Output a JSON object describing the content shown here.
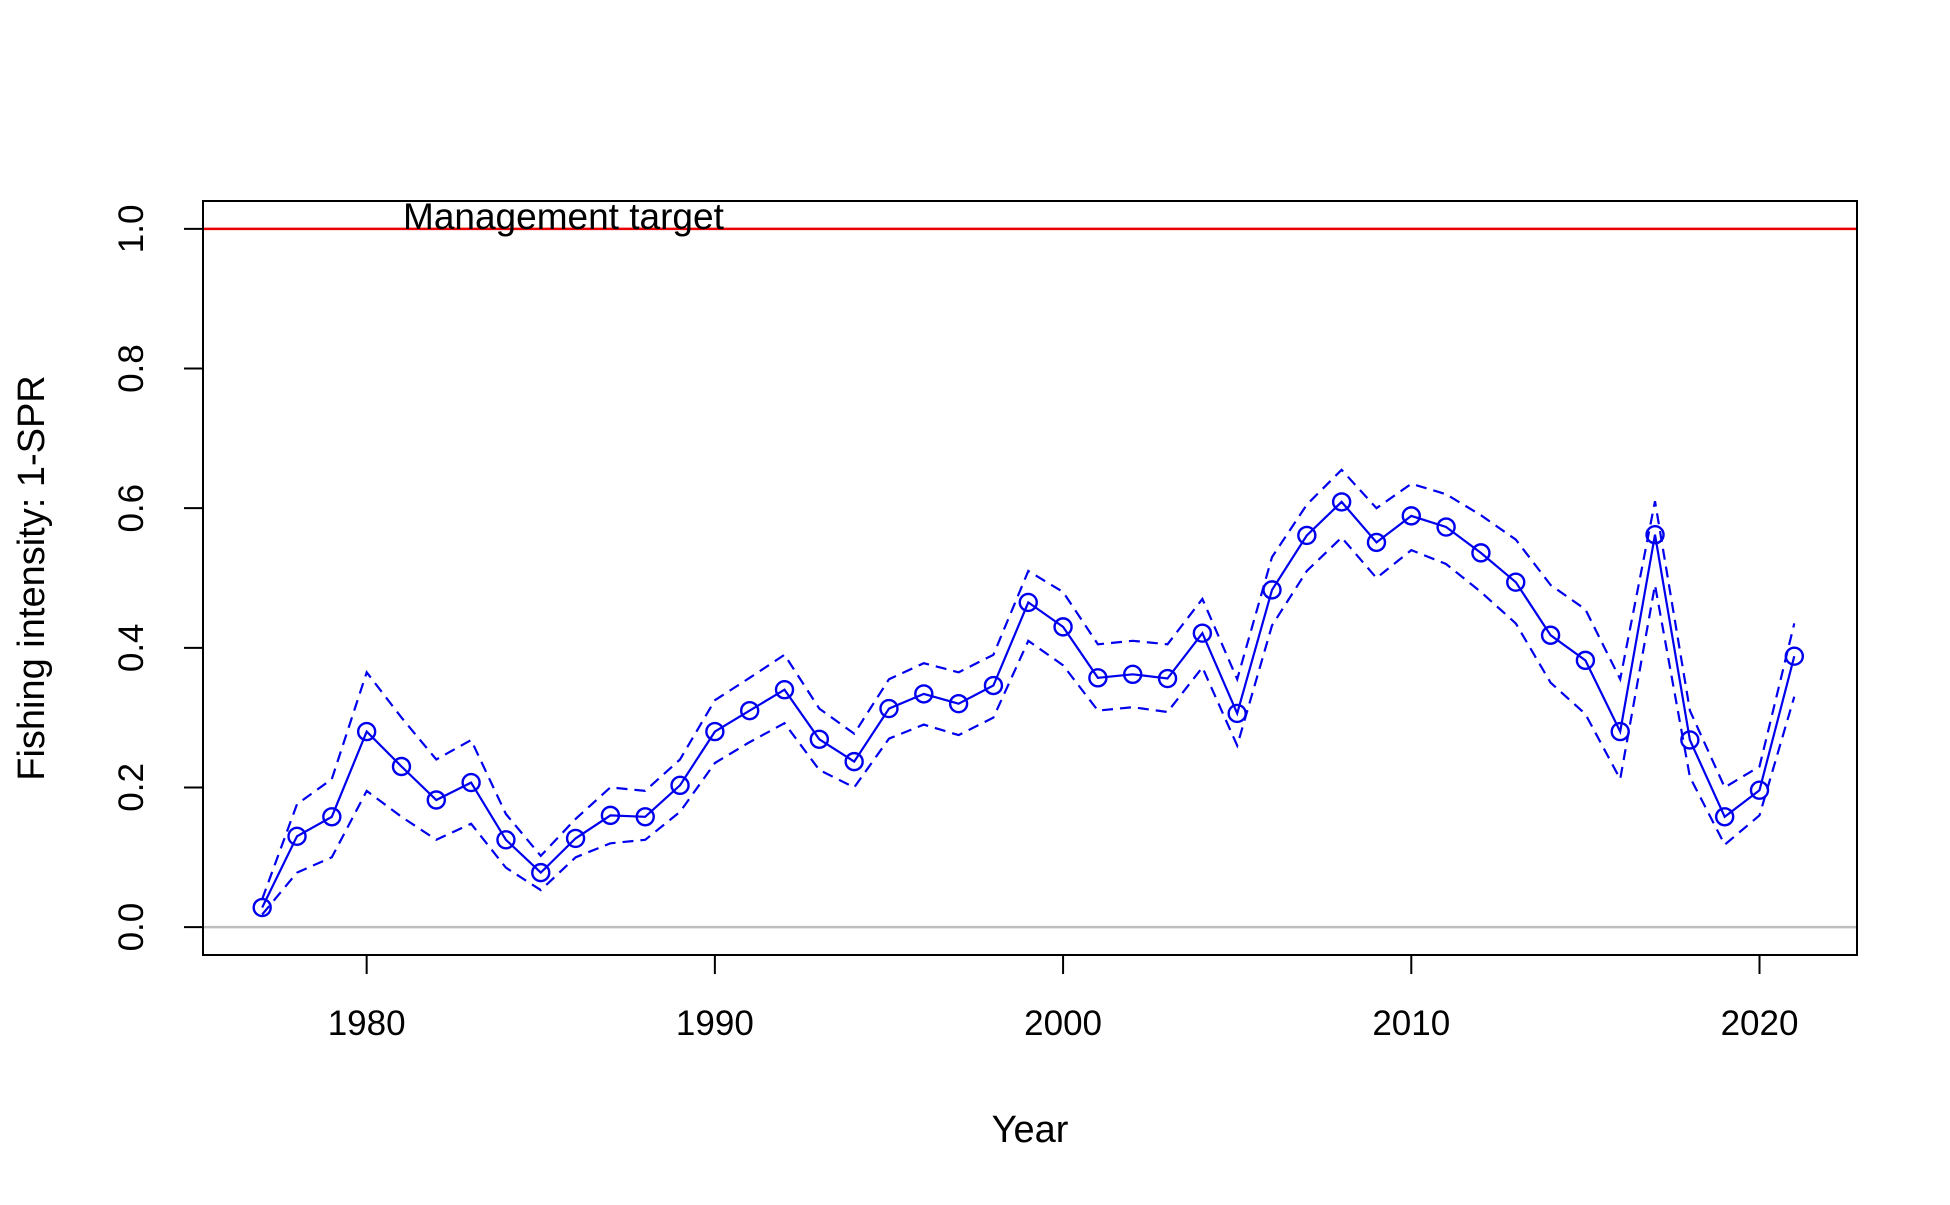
{
  "chart_data": {
    "type": "line",
    "title": "",
    "xlabel": "Year",
    "ylabel": "Fishing intensity: 1-SPR",
    "xlim": [
      1975.3,
      2022.8
    ],
    "ylim": [
      -0.04,
      1.04
    ],
    "x_ticks": [
      1980,
      1990,
      2000,
      2010,
      2020
    ],
    "y_ticks": [
      "0.0",
      "0.2",
      "0.4",
      "0.6",
      "0.8",
      "1.0"
    ],
    "grid": false,
    "legend": "none",
    "colors": {
      "series": "#0000ee",
      "target_line": "#ee0000",
      "zero_line": "#bebebe"
    },
    "reference_lines": [
      {
        "y": 1.0,
        "label": "Management target",
        "color": "#ee0000"
      },
      {
        "y": 0.0,
        "label": "",
        "color": "#bebebe"
      }
    ],
    "x": [
      1977,
      1978,
      1979,
      1980,
      1981,
      1982,
      1983,
      1984,
      1985,
      1986,
      1987,
      1988,
      1989,
      1990,
      1991,
      1992,
      1993,
      1994,
      1995,
      1996,
      1997,
      1998,
      1999,
      2000,
      2001,
      2002,
      2003,
      2004,
      2005,
      2006,
      2007,
      2008,
      2009,
      2010,
      2011,
      2012,
      2013,
      2014,
      2015,
      2016,
      2017,
      2018,
      2019,
      2020,
      2021
    ],
    "series": [
      {
        "name": "",
        "style": "solid line with open circles",
        "values": [
          0.028,
          0.13,
          0.158,
          0.28,
          0.23,
          0.182,
          0.207,
          0.125,
          0.078,
          0.127,
          0.16,
          0.158,
          0.203,
          0.28,
          0.31,
          0.34,
          0.269,
          0.237,
          0.313,
          0.334,
          0.32,
          0.346,
          0.465,
          0.43,
          0.357,
          0.362,
          0.356,
          0.421,
          0.306,
          0.483,
          0.561,
          0.609,
          0.551,
          0.589,
          0.573,
          0.536,
          0.494,
          0.418,
          0.382,
          0.28,
          0.562,
          0.268,
          0.158,
          0.196,
          0.388
        ]
      },
      {
        "name": "",
        "style": "dashed upper interval",
        "values": [
          0.04,
          0.176,
          0.212,
          0.365,
          0.3,
          0.24,
          0.268,
          0.162,
          0.102,
          0.155,
          0.2,
          0.195,
          0.24,
          0.325,
          0.357,
          0.39,
          0.313,
          0.277,
          0.355,
          0.378,
          0.365,
          0.39,
          0.51,
          0.48,
          0.405,
          0.41,
          0.405,
          0.47,
          0.355,
          0.53,
          0.605,
          0.655,
          0.6,
          0.635,
          0.62,
          0.59,
          0.555,
          0.49,
          0.455,
          0.355,
          0.61,
          0.31,
          0.2,
          0.23,
          0.435
        ]
      },
      {
        "name": "",
        "style": "dashed lower interval",
        "values": [
          0.018,
          0.078,
          0.1,
          0.195,
          0.158,
          0.125,
          0.148,
          0.085,
          0.053,
          0.1,
          0.12,
          0.125,
          0.165,
          0.235,
          0.265,
          0.292,
          0.225,
          0.2,
          0.27,
          0.29,
          0.275,
          0.3,
          0.41,
          0.375,
          0.31,
          0.315,
          0.308,
          0.372,
          0.26,
          0.432,
          0.51,
          0.558,
          0.5,
          0.54,
          0.52,
          0.48,
          0.435,
          0.35,
          0.305,
          0.212,
          0.49,
          0.215,
          0.118,
          0.16,
          0.33
        ]
      }
    ]
  }
}
